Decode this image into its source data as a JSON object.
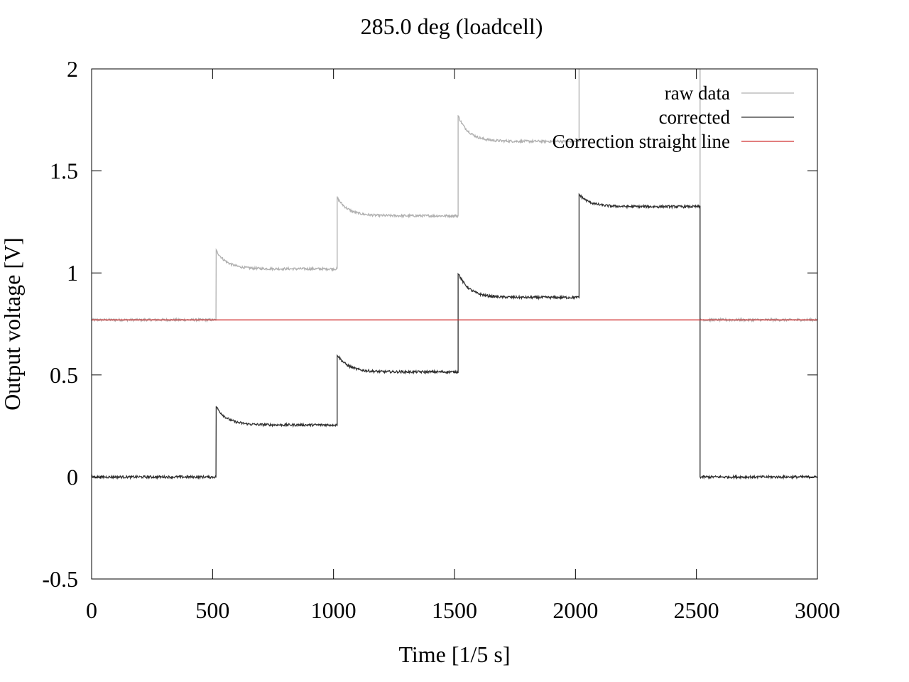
{
  "chart_data": {
    "type": "line",
    "title": "285.0 deg (loadcell)",
    "xlabel": "Time [1/5 s]",
    "ylabel": "Output voltage [V]",
    "xlim": [
      0,
      3000
    ],
    "ylim": [
      -0.5,
      2
    ],
    "xticks": [
      0,
      500,
      1000,
      1500,
      2000,
      2500,
      3000
    ],
    "yticks": [
      -0.5,
      0,
      0.5,
      1,
      1.5,
      2
    ],
    "xtick_labels": [
      "0",
      "500",
      "1000",
      "1500",
      "2000",
      "2500",
      "3000"
    ],
    "ytick_labels": [
      "-0.5",
      "0",
      "0.5",
      "1",
      "1.5",
      "2"
    ],
    "grid": false,
    "legend_position": "top-right",
    "series": [
      {
        "name": "raw data",
        "color": "#b0b0b0",
        "step_times": [
          0,
          515,
          1015,
          1515,
          2015,
          2515,
          3000
        ],
        "step_levels": [
          0.77,
          1.02,
          1.28,
          1.645,
          2.09,
          0.77
        ],
        "step_peaks": [
          null,
          1.11,
          1.37,
          1.77,
          2.2,
          null
        ]
      },
      {
        "name": "corrected",
        "color": "#303030",
        "step_times": [
          0,
          515,
          1015,
          1515,
          2015,
          2515,
          3000
        ],
        "step_levels": [
          0.0,
          0.255,
          0.515,
          0.88,
          1.325,
          0.0
        ],
        "step_peaks": [
          null,
          0.345,
          0.6,
          1.0,
          1.385,
          null
        ]
      },
      {
        "name": "Correction straight line",
        "color": "#d03030",
        "x": [
          0,
          3000
        ],
        "y": [
          0.77,
          0.77
        ]
      }
    ]
  }
}
